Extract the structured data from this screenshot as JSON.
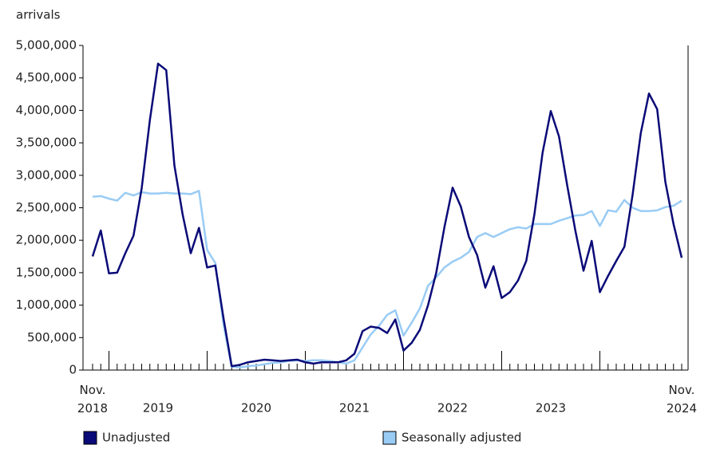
{
  "chart_data": {
    "type": "line",
    "y_label": "arrivals",
    "categories": [
      "Nov. 2018",
      null,
      null,
      null,
      null,
      null,
      null,
      null,
      "2019",
      null,
      null,
      null,
      null,
      null,
      null,
      null,
      null,
      null,
      null,
      null,
      "2020",
      null,
      null,
      null,
      null,
      null,
      null,
      null,
      null,
      null,
      null,
      null,
      "2021",
      null,
      null,
      null,
      null,
      null,
      null,
      null,
      null,
      null,
      null,
      null,
      "2022",
      null,
      null,
      null,
      null,
      null,
      null,
      null,
      null,
      null,
      null,
      null,
      "2023",
      null,
      null,
      null,
      null,
      null,
      null,
      null,
      null,
      null,
      null,
      null,
      null,
      null,
      null,
      null,
      "Nov. 2024"
    ],
    "series": [
      {
        "name": "Unadjusted",
        "color": "#0a0a78",
        "values": [
          1750000,
          2150000,
          1490000,
          1500000,
          1800000,
          2070000,
          2800000,
          3850000,
          4720000,
          4620000,
          3150000,
          2400000,
          1800000,
          2190000,
          1580000,
          1610000,
          800000,
          60000,
          80000,
          120000,
          140000,
          160000,
          150000,
          140000,
          150000,
          160000,
          120000,
          100000,
          120000,
          120000,
          120000,
          150000,
          250000,
          600000,
          670000,
          650000,
          570000,
          780000,
          300000,
          420000,
          620000,
          1000000,
          1500000,
          2200000,
          2810000,
          2520000,
          2050000,
          1770000,
          1270000,
          1600000,
          1110000,
          1200000,
          1380000,
          1680000,
          2400000,
          3350000,
          3990000,
          3600000,
          2850000,
          2150000,
          1530000,
          1990000,
          1200000,
          1450000,
          1680000,
          1900000,
          2700000,
          3650000,
          4260000,
          4020000,
          2900000,
          2250000,
          1730000
        ]
      },
      {
        "name": "Seasonally adjusted",
        "color": "#99ccf5",
        "values": [
          2670000,
          2680000,
          2640000,
          2610000,
          2730000,
          2690000,
          2740000,
          2720000,
          2720000,
          2730000,
          2720000,
          2720000,
          2710000,
          2760000,
          1850000,
          1650000,
          700000,
          50000,
          40000,
          60000,
          70000,
          90000,
          110000,
          120000,
          140000,
          150000,
          140000,
          150000,
          150000,
          140000,
          120000,
          100000,
          150000,
          350000,
          550000,
          680000,
          850000,
          920000,
          530000,
          730000,
          950000,
          1300000,
          1430000,
          1580000,
          1670000,
          1730000,
          1820000,
          2050000,
          2110000,
          2050000,
          2110000,
          2170000,
          2200000,
          2180000,
          2250000,
          2250000,
          2250000,
          2300000,
          2340000,
          2380000,
          2390000,
          2450000,
          2220000,
          2460000,
          2440000,
          2620000,
          2500000,
          2450000,
          2450000,
          2460000,
          2510000,
          2530000,
          2610000
        ]
      }
    ],
    "ylim": [
      0,
      5000000
    ],
    "yticks": [
      0,
      {
        "value": 500000,
        "label": "500,000"
      },
      {
        "value": 1000000,
        "label": "1,000,000"
      },
      {
        "value": 1500000,
        "label": "1,500,000"
      },
      {
        "value": 2000000,
        "label": "2,000,000"
      },
      {
        "value": 2500000,
        "label": "2,500,000"
      },
      {
        "value": 3000000,
        "label": "3,000,000"
      },
      {
        "value": 3500000,
        "label": "3,500,000"
      },
      {
        "value": 4000000,
        "label": "4,000,000"
      },
      {
        "value": 4500000,
        "label": "4,500,000"
      },
      {
        "value": 5000000,
        "label": "5,000,000"
      }
    ],
    "grid": false
  }
}
